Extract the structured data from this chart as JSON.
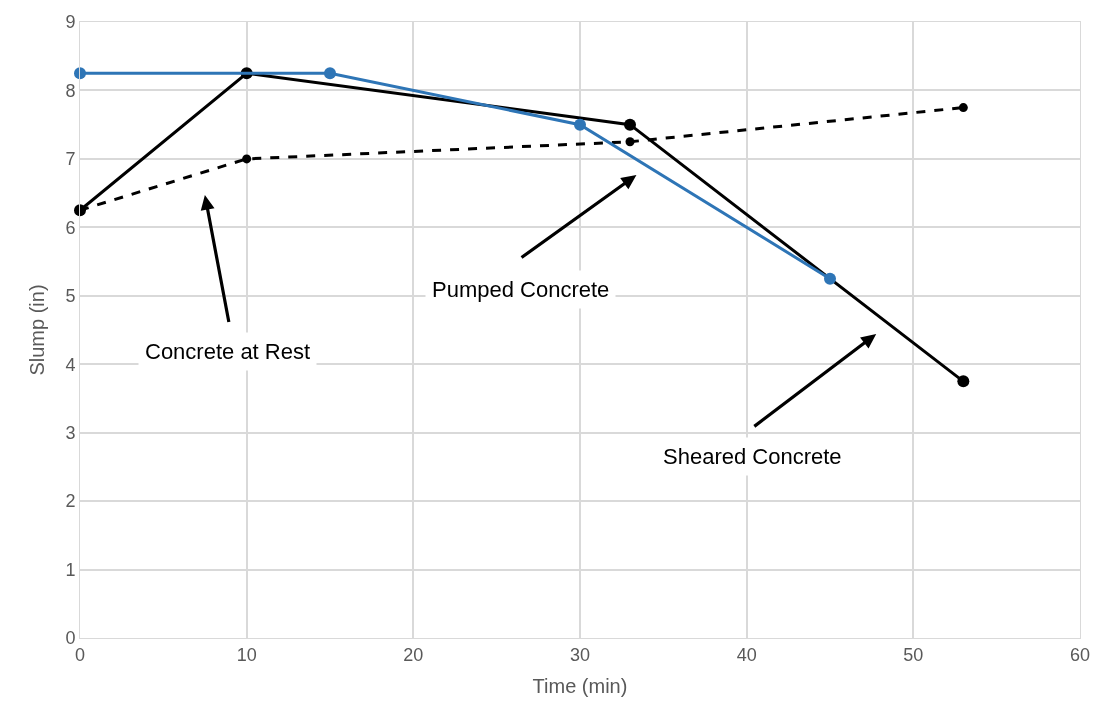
{
  "chart_data": {
    "type": "line",
    "xlabel": "Time (min)",
    "ylabel": "Slump (in)",
    "xlim": [
      0,
      60
    ],
    "xticks": [
      0,
      10,
      20,
      30,
      40,
      50,
      60
    ],
    "ylim": [
      0,
      9
    ],
    "yticks": [
      0,
      1,
      2,
      3,
      4,
      5,
      6,
      7,
      8,
      9
    ],
    "grid": true,
    "marker": "circle",
    "series": [
      {
        "color": "#000000",
        "line_style": "dashed",
        "x": [
          0,
          10,
          33,
          53
        ],
        "values": [
          6.25,
          7,
          7.25,
          7.75
        ]
      },
      {
        "color": "#000000",
        "line_style": "solid",
        "x": [
          0,
          10,
          33,
          53
        ],
        "values": [
          6.25,
          8.25,
          7.5,
          3.75
        ]
      },
      {
        "color": "#2e75b6",
        "line_style": "solid",
        "x": [
          0,
          15,
          30,
          45
        ],
        "values": [
          8.25,
          8.25,
          7.5,
          5.25
        ]
      }
    ],
    "annotations": [
      "Concrete at Rest",
      "Pumped Concrete",
      "Sheared Concrete"
    ]
  }
}
